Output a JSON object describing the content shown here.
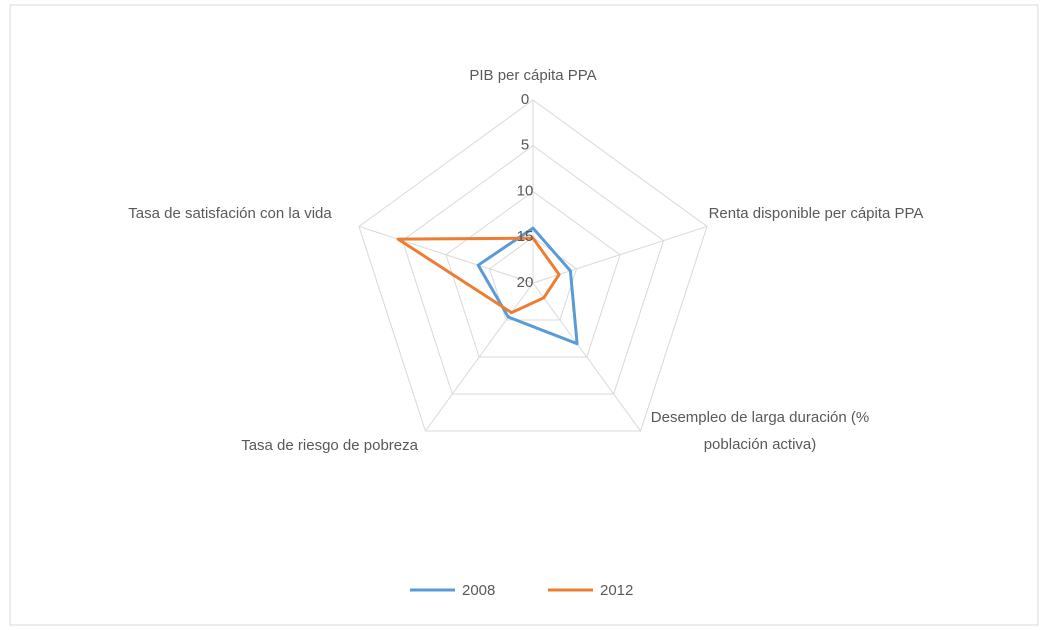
{
  "chart_data": {
    "type": "radar",
    "categories": [
      "PIB per cápita PPA",
      "Renta disponible per cápita PPA",
      "Desempleo de larga duración (% población activa)",
      "Tasa de riesgo de pobreza",
      "Tasa de satisfación  con la vida"
    ],
    "series": [
      {
        "name": "2008",
        "color": "#5b9bd5",
        "values": [
          14,
          15.7,
          11.8,
          15.4,
          13.7
        ]
      },
      {
        "name": "2012",
        "color": "#ed7d31",
        "values": [
          15.1,
          17,
          18,
          16,
          4.5
        ]
      }
    ],
    "ylim": [
      0,
      20
    ],
    "yticks": [
      0,
      5,
      10,
      15,
      20
    ],
    "reverse_axis": true,
    "grid": true,
    "legend": "bottom"
  }
}
